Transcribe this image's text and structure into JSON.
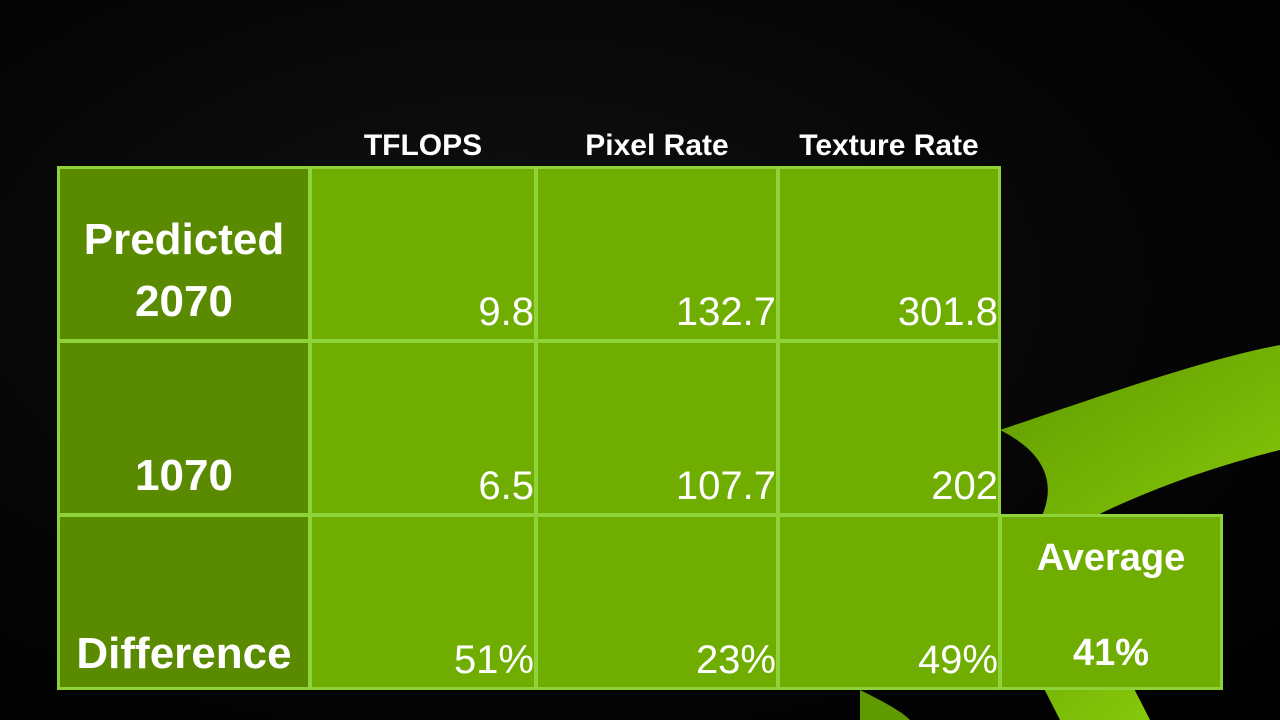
{
  "columns": [
    "TFLOPS",
    "Pixel Rate",
    "Texture Rate"
  ],
  "rows": [
    {
      "label_line1": "Predicted",
      "label_line2": "2070",
      "values": [
        "9.8",
        "132.7",
        "301.8"
      ]
    },
    {
      "label_line1": "",
      "label_line2": "1070",
      "values": [
        "6.5",
        "107.7",
        "202"
      ]
    },
    {
      "label_line1": "",
      "label_line2": "Difference",
      "values": [
        "51%",
        "23%",
        "49%"
      ]
    }
  ],
  "average": {
    "label": "Average",
    "value": "41%"
  },
  "colors": {
    "cell_green": "#6fae00",
    "label_green": "#5a8a00",
    "border_green": "#8fd33a",
    "background": "#050505",
    "swoosh": "#76b900"
  }
}
